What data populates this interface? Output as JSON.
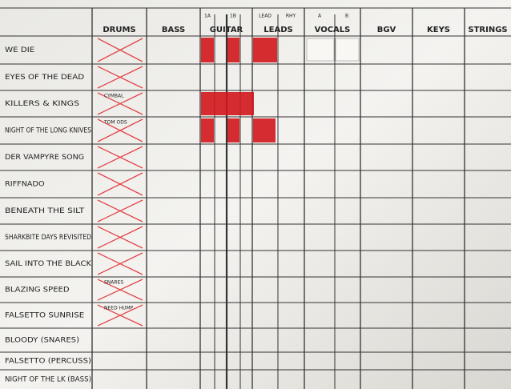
{
  "header": {
    "columns": [
      "DRUMS",
      "BASS",
      "GUITAR",
      "LEADS",
      "VOCALS",
      "BGV",
      "KEYS",
      "STRINGS"
    ],
    "guitar_sub": [
      "1A",
      "1B"
    ],
    "leads_sub": [
      "LEAD",
      "RHY"
    ],
    "vocals_sub": [
      "A",
      "B"
    ]
  },
  "rows": [
    {
      "name": "WE DIE"
    },
    {
      "name": "EYES OF THE DEAD"
    },
    {
      "name": "KILLERS & KINGS",
      "drums_note": "CYMBAL"
    },
    {
      "name": "NIGHT OF THE LONG KNIVES",
      "drums_note": "TOM ODS"
    },
    {
      "name": "DER VAMPYRE SONG"
    },
    {
      "name": "RIFFNADO"
    },
    {
      "name": "BENEATH THE SILT"
    },
    {
      "name": "SHARKBITE DAYS REVISITED"
    },
    {
      "name": "SAIL INTO THE BLACK"
    },
    {
      "name": "BLAZING SPEED",
      "drums_note": "SNARES"
    },
    {
      "name": "FALSETTO SUNRISE",
      "drums_note": "NEED HUMP"
    },
    {
      "name": "BLOODY (SNARES)"
    },
    {
      "name": "FALSETTO (PERCUSS)"
    },
    {
      "name": "NIGHT OF THE LK (BASS)"
    }
  ]
}
